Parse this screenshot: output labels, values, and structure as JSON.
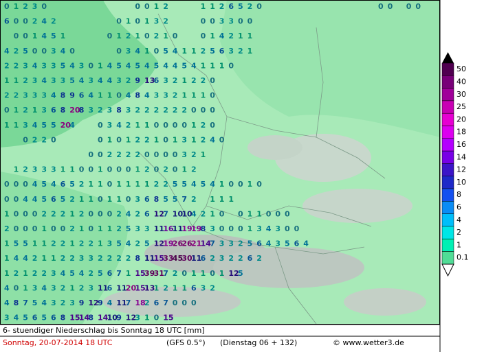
{
  "map": {
    "rows": [
      [
        0,
        1,
        2,
        3,
        0,
        null,
        null,
        null,
        null,
        null,
        null,
        null,
        null,
        null,
        0,
        0,
        1,
        2,
        null,
        null,
        null,
        1,
        1,
        2,
        6,
        5,
        2,
        0,
        null,
        null,
        null,
        null,
        null,
        null,
        null,
        null,
        null,
        null,
        null,
        null,
        0,
        0,
        null,
        0,
        0
      ],
      [
        6,
        0,
        0,
        2,
        4,
        2,
        null,
        null,
        null,
        null,
        null,
        null,
        0,
        1,
        0,
        1,
        3,
        2,
        null,
        null,
        null,
        0,
        0,
        3,
        3,
        0,
        0
      ],
      [
        null,
        0,
        0,
        1,
        4,
        5,
        1,
        null,
        null,
        null,
        null,
        0,
        1,
        2,
        1,
        0,
        2,
        1,
        0,
        null,
        null,
        0,
        1,
        4,
        2,
        1,
        1
      ],
      [
        4,
        2,
        5,
        0,
        0,
        3,
        4,
        0,
        null,
        null,
        null,
        null,
        0,
        3,
        4,
        1,
        0,
        5,
        4,
        1,
        1,
        2,
        5,
        6,
        3,
        2,
        1
      ],
      [
        2,
        2,
        3,
        4,
        3,
        3,
        5,
        4,
        3,
        0,
        1,
        4,
        5,
        4,
        5,
        4,
        5,
        4,
        4,
        5,
        4,
        1,
        1,
        1,
        0
      ],
      [
        1,
        1,
        2,
        3,
        4,
        3,
        3,
        5,
        4,
        3,
        4,
        4,
        3,
        2,
        9,
        13,
        6,
        3,
        2,
        1,
        2,
        2,
        0
      ],
      [
        2,
        2,
        3,
        3,
        3,
        4,
        8,
        9,
        6,
        4,
        1,
        1,
        0,
        4,
        8,
        4,
        3,
        3,
        2,
        1,
        1,
        1,
        0
      ],
      [
        0,
        1,
        2,
        1,
        3,
        6,
        8,
        20,
        8,
        3,
        2,
        3,
        8,
        3,
        2,
        2,
        2,
        2,
        2,
        2,
        0,
        0,
        0
      ],
      [
        1,
        1,
        3,
        4,
        5,
        5,
        20,
        4,
        null,
        null,
        0,
        3,
        4,
        2,
        1,
        1,
        0,
        0,
        0,
        0,
        1,
        2,
        0
      ],
      [
        null,
        null,
        0,
        2,
        2,
        0,
        null,
        null,
        null,
        null,
        0,
        1,
        0,
        1,
        2,
        2,
        1,
        0,
        1,
        3,
        1,
        2,
        4,
        0
      ],
      [
        null,
        null,
        null,
        null,
        null,
        null,
        null,
        null,
        null,
        0,
        0,
        2,
        2,
        2,
        2,
        0,
        0,
        0,
        0,
        3,
        2,
        1
      ],
      [
        null,
        1,
        2,
        3,
        3,
        3,
        1,
        1,
        0,
        0,
        1,
        0,
        0,
        0,
        1,
        2,
        0,
        2,
        0,
        1,
        2
      ],
      [
        0,
        0,
        0,
        4,
        5,
        4,
        6,
        5,
        2,
        1,
        1,
        0,
        1,
        1,
        1,
        1,
        2,
        2,
        5,
        5,
        4,
        5,
        4,
        1,
        0,
        0,
        1,
        0
      ],
      [
        0,
        0,
        4,
        4,
        5,
        6,
        5,
        2,
        1,
        1,
        0,
        1,
        1,
        0,
        3,
        6,
        8,
        5,
        5,
        7,
        2,
        null,
        1,
        1,
        1
      ],
      [
        1,
        0,
        0,
        0,
        2,
        2,
        2,
        1,
        2,
        0,
        0,
        0,
        2,
        4,
        2,
        6,
        12,
        7,
        10,
        10,
        4,
        2,
        1,
        0,
        null,
        0,
        1,
        1,
        0,
        0,
        0
      ],
      [
        2,
        0,
        0,
        0,
        1,
        0,
        0,
        2,
        1,
        0,
        1,
        1,
        2,
        5,
        3,
        3,
        11,
        16,
        11,
        19,
        19,
        8,
        3,
        0,
        0,
        0,
        1,
        3,
        4,
        3,
        0,
        0
      ],
      [
        1,
        5,
        5,
        1,
        1,
        2,
        2,
        1,
        2,
        2,
        1,
        3,
        5,
        4,
        2,
        5,
        12,
        19,
        26,
        26,
        21,
        14,
        7,
        3,
        3,
        2,
        5,
        6,
        4,
        3,
        5,
        6,
        4
      ],
      [
        1,
        4,
        4,
        2,
        1,
        1,
        2,
        2,
        3,
        3,
        2,
        2,
        2,
        2,
        8,
        11,
        15,
        33,
        45,
        30,
        11,
        6,
        2,
        3,
        2,
        2,
        6,
        2
      ],
      [
        1,
        2,
        1,
        2,
        2,
        3,
        4,
        5,
        4,
        2,
        5,
        6,
        7,
        1,
        15,
        39,
        31,
        7,
        2,
        0,
        1,
        1,
        0,
        1,
        12,
        5
      ],
      [
        4,
        0,
        1,
        3,
        4,
        3,
        2,
        1,
        2,
        3,
        11,
        6,
        11,
        20,
        15,
        13,
        1,
        2,
        1,
        1,
        6,
        3,
        2
      ],
      [
        4,
        8,
        7,
        5,
        4,
        3,
        2,
        3,
        9,
        12,
        9,
        4,
        11,
        7,
        18,
        2,
        6,
        7,
        0,
        0,
        0
      ],
      [
        3,
        4,
        5,
        6,
        5,
        6,
        8,
        15,
        14,
        8,
        14,
        10,
        9,
        12,
        3,
        1,
        0,
        15
      ]
    ]
  },
  "legend": {
    "levels": [
      {
        "value": 50,
        "color": "#500050"
      },
      {
        "value": 40,
        "color": "#780078"
      },
      {
        "value": 30,
        "color": "#a0009a"
      },
      {
        "value": 25,
        "color": "#c800b4"
      },
      {
        "value": 20,
        "color": "#e600d2"
      },
      {
        "value": 18,
        "color": "#dc00f0"
      },
      {
        "value": 16,
        "color": "#b400ff"
      },
      {
        "value": 14,
        "color": "#7800e6"
      },
      {
        "value": 12,
        "color": "#3c14c8"
      },
      {
        "value": 10,
        "color": "#1e28c8"
      },
      {
        "value": 8,
        "color": "#1450f0"
      },
      {
        "value": 6,
        "color": "#0a8cf5"
      },
      {
        "value": 4,
        "color": "#00befa"
      },
      {
        "value": 2,
        "color": "#00e6e6"
      },
      {
        "value": 1,
        "color": "#00f0b4"
      },
      {
        "value": 0.1,
        "color": "#50dc96"
      }
    ]
  },
  "footer": {
    "title": "6- stuendiger Niederschlag bis Sonntag 18 UTC [mm]",
    "date": "Sonntag, 20-07-2014  18 UTC",
    "model": "(GFS 0.5°)",
    "run": "(Dienstag 06 + 132)",
    "copyright": "© www.wetter3.de"
  }
}
